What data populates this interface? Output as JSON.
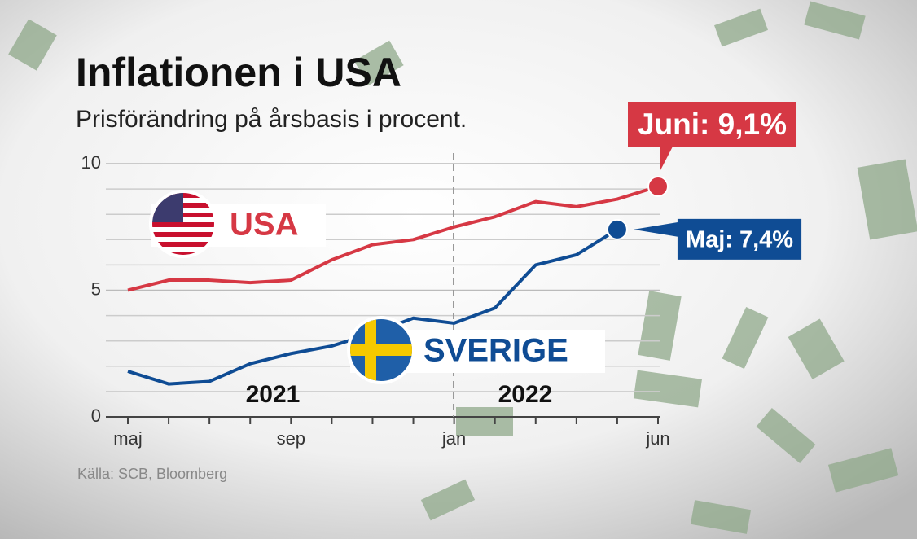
{
  "chart_data": {
    "type": "line",
    "title": "Inflationen i  USA",
    "subtitle": "Prisförändring på årsbasis i procent.",
    "source": "Källa: SCB, Bloomberg",
    "year_labels": [
      "2021",
      "2022"
    ],
    "categories": [
      "maj",
      null,
      null,
      null,
      "sep",
      null,
      null,
      null,
      "jan",
      null,
      null,
      null,
      null,
      "jun"
    ],
    "ylim": [
      0,
      10
    ],
    "yticks": [
      0,
      5,
      10
    ],
    "minor_yticks": [
      1,
      2,
      3,
      4,
      6,
      7,
      8,
      9
    ],
    "grid": true,
    "series": [
      {
        "name": "USA",
        "color": "#d63844",
        "values": [
          5.0,
          5.4,
          5.4,
          5.3,
          5.4,
          6.2,
          6.8,
          7.0,
          7.5,
          7.9,
          8.5,
          8.3,
          8.6,
          9.1
        ],
        "value_labels": [
          null,
          null,
          null,
          null,
          null,
          null,
          null,
          null,
          null,
          null,
          null,
          null,
          null,
          "Juni: 9,1%"
        ]
      },
      {
        "name": "SVERIGE",
        "color": "#0f4c94",
        "values": [
          1.8,
          1.3,
          1.4,
          2.1,
          2.5,
          2.8,
          3.3,
          3.9,
          3.7,
          4.3,
          6.0,
          6.4,
          7.4,
          null
        ],
        "value_labels": [
          null,
          null,
          null,
          null,
          null,
          null,
          null,
          null,
          null,
          null,
          null,
          null,
          "Maj: 7,4%",
          null
        ]
      }
    ]
  }
}
